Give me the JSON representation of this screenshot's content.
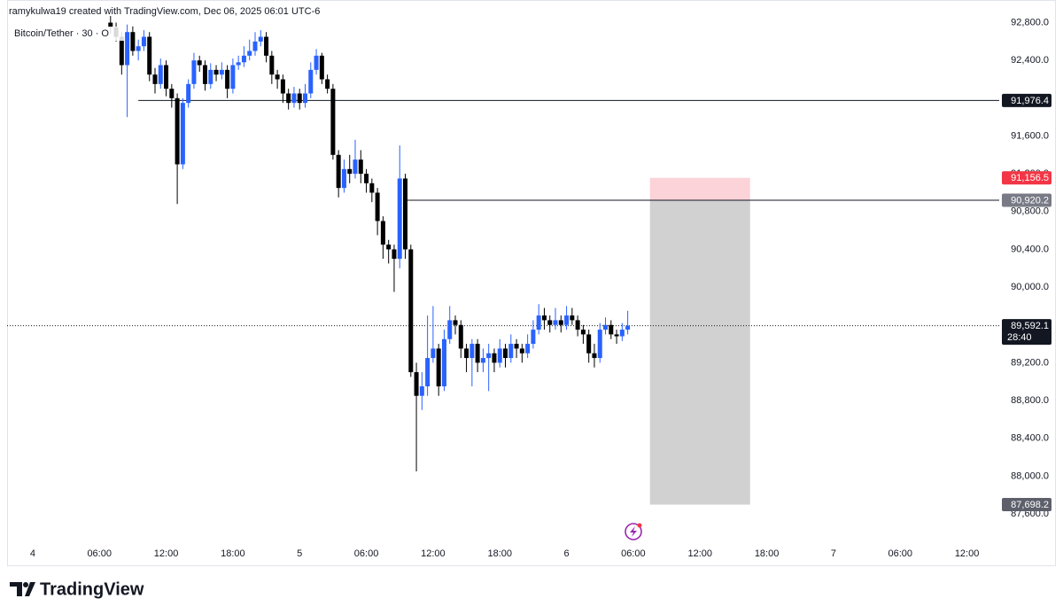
{
  "chart_data": {
    "type": "candlestick",
    "subtitle": "ramykulwa19 created with TradingView.com, Dec 06, 2025 06:01 UTC-6",
    "title": "Bitcoin/Tether · 30 · O",
    "up_color": "#2962ff",
    "down_color": "#000000",
    "grid": false,
    "x": [
      7,
      7.5,
      8,
      8.5,
      9,
      9.5,
      10,
      10.5,
      11,
      11.5,
      12,
      12.5,
      13,
      13.5,
      14,
      14.5,
      15,
      15.5,
      16,
      16.5,
      17,
      17.5,
      18,
      18.5,
      19,
      19.5,
      20,
      20.5,
      21,
      21.5,
      22,
      22.5,
      23,
      23.5,
      24,
      24.5,
      25,
      25.5,
      26,
      26.5,
      27,
      27.5,
      28,
      28.5,
      29,
      29.5,
      30,
      30.5,
      31,
      31.5,
      32,
      32.5,
      33,
      33.5,
      34,
      34.5,
      35,
      35.5,
      36,
      36.5,
      37,
      37.5,
      38,
      38.5,
      39,
      39.5,
      40,
      40.5,
      41,
      41.5,
      42,
      42.5,
      43,
      43.5,
      44,
      44.5,
      45,
      45.5,
      46,
      46.5,
      47,
      47.5,
      48,
      48.5,
      49,
      49.5,
      50,
      50.5,
      51,
      51.5,
      52,
      52.5,
      53,
      53.5
    ],
    "open": [
      92800,
      92750,
      92650,
      92350,
      92700,
      92500,
      92550,
      92650,
      92250,
      92150,
      92350,
      92100,
      92000,
      91300,
      91950,
      92150,
      92400,
      92350,
      92150,
      92300,
      92250,
      92300,
      92100,
      92350,
      92380,
      92450,
      92500,
      92600,
      92650,
      92450,
      92250,
      92200,
      92050,
      91950,
      92050,
      91950,
      92050,
      92300,
      92450,
      92200,
      92100,
      91400,
      91050,
      91250,
      91200,
      91350,
      91200,
      91100,
      91000,
      90700,
      90450,
      90400,
      90300,
      91150,
      90400,
      89100,
      88850,
      88950,
      89250,
      89350,
      88950,
      89450,
      89650,
      89600,
      89350,
      89250,
      89400,
      89200,
      89250,
      89300,
      89200,
      89350,
      89250,
      89400,
      89350,
      89300,
      89400,
      89550,
      89700,
      89650,
      89600,
      89650,
      89600,
      89700,
      89650,
      89550,
      89500,
      89300,
      89250,
      89550,
      89600,
      89500,
      89480,
      89550
    ],
    "high": [
      92870,
      92800,
      92700,
      92780,
      92760,
      92620,
      92720,
      92700,
      92320,
      92420,
      92400,
      92150,
      92050,
      92000,
      92200,
      92480,
      92450,
      92400,
      92370,
      92350,
      92380,
      92350,
      92420,
      92450,
      92550,
      92620,
      92700,
      92720,
      92700,
      92500,
      92300,
      92250,
      92100,
      92120,
      92100,
      92150,
      92380,
      92520,
      92480,
      92250,
      92150,
      91450,
      91350,
      91400,
      91560,
      91450,
      91250,
      91150,
      91050,
      90750,
      90500,
      90450,
      91500,
      91200,
      90450,
      89200,
      89100,
      89700,
      89800,
      89400,
      89550,
      89800,
      89700,
      89650,
      89400,
      89450,
      89450,
      89350,
      89400,
      89350,
      89450,
      89400,
      89500,
      89450,
      89400,
      89500,
      89650,
      89820,
      89780,
      89700,
      89780,
      89700,
      89800,
      89780,
      89700,
      89600,
      89550,
      89400,
      89620,
      89680,
      89650,
      89550,
      89620,
      89750
    ],
    "low": [
      92680,
      92600,
      92250,
      91800,
      92450,
      92400,
      92500,
      92180,
      92050,
      92100,
      92020,
      91900,
      90880,
      91250,
      91900,
      92100,
      92280,
      92080,
      92100,
      92180,
      92200,
      92000,
      92050,
      92300,
      92330,
      92400,
      92450,
      92550,
      92380,
      92150,
      92100,
      91950,
      91880,
      91900,
      91880,
      91900,
      92000,
      92250,
      92150,
      92050,
      91350,
      90950,
      91000,
      91100,
      91150,
      91100,
      91000,
      90900,
      90550,
      90300,
      90250,
      89950,
      90200,
      90300,
      89050,
      88050,
      88700,
      88850,
      89200,
      88850,
      88900,
      89400,
      89500,
      89250,
      89100,
      88950,
      89100,
      89100,
      88900,
      89100,
      89150,
      89150,
      89200,
      89250,
      89200,
      89250,
      89350,
      89500,
      89550,
      89520,
      89550,
      89520,
      89550,
      89600,
      89480,
      89400,
      89200,
      89150,
      89200,
      89500,
      89450,
      89400,
      89430,
      89500
    ],
    "close": [
      92750,
      92650,
      92350,
      92700,
      92500,
      92550,
      92650,
      92250,
      92150,
      92350,
      92100,
      92000,
      91300,
      91950,
      92150,
      92400,
      92350,
      92150,
      92300,
      92250,
      92300,
      92100,
      92350,
      92380,
      92450,
      92500,
      92600,
      92650,
      92450,
      92250,
      92200,
      92050,
      91950,
      92050,
      91950,
      92050,
      92300,
      92450,
      92200,
      92100,
      91400,
      91050,
      91250,
      91200,
      91350,
      91200,
      91100,
      91000,
      90700,
      90450,
      90400,
      90300,
      91150,
      90400,
      89100,
      88850,
      88950,
      89250,
      89350,
      88950,
      89450,
      89650,
      89600,
      89350,
      89250,
      89400,
      89200,
      89250,
      89300,
      89200,
      89350,
      89250,
      89400,
      89350,
      89300,
      89400,
      89550,
      89700,
      89650,
      89600,
      89650,
      89600,
      89700,
      89650,
      89550,
      89500,
      89300,
      89250,
      89550,
      89600,
      89500,
      89480,
      89550,
      89592.1
    ],
    "xlim": [
      -2.3,
      86.9
    ],
    "ylim": [
      87300,
      92880
    ],
    "xticks": [
      {
        "value": 0,
        "label": "4"
      },
      {
        "value": 6,
        "label": "06:00"
      },
      {
        "value": 12,
        "label": "12:00"
      },
      {
        "value": 18,
        "label": "18:00"
      },
      {
        "value": 24,
        "label": "5"
      },
      {
        "value": 30,
        "label": "06:00"
      },
      {
        "value": 36,
        "label": "12:00"
      },
      {
        "value": 42,
        "label": "18:00"
      },
      {
        "value": 48,
        "label": "6"
      },
      {
        "value": 54,
        "label": "06:00"
      },
      {
        "value": 60,
        "label": "12:00"
      },
      {
        "value": 66,
        "label": "18:00"
      },
      {
        "value": 72,
        "label": "7"
      },
      {
        "value": 78,
        "label": "06:00"
      },
      {
        "value": 84,
        "label": "12:00"
      }
    ],
    "yticks": [
      {
        "value": 87600,
        "label": "87,600.0"
      },
      {
        "value": 88000,
        "label": "88,000.0"
      },
      {
        "value": 88400,
        "label": "88,400.0"
      },
      {
        "value": 88800,
        "label": "88,800.0"
      },
      {
        "value": 89200,
        "label": "89,200.0"
      },
      {
        "value": 89600,
        "label": "89,600.0"
      },
      {
        "value": 90000,
        "label": "90,000.0"
      },
      {
        "value": 90400,
        "label": "90,400.0"
      },
      {
        "value": 90800,
        "label": "90,800.0"
      },
      {
        "value": 91200,
        "label": "91,200.0"
      },
      {
        "value": 91600,
        "label": "91,600.0"
      },
      {
        "value": 92000,
        "label": "92,000.0"
      },
      {
        "value": 92400,
        "label": "92,400.0"
      },
      {
        "value": 92800,
        "label": "92,800.0"
      }
    ],
    "levels": [
      {
        "value": 91976.4,
        "label": "91,976.4",
        "from_x": 9.5
      },
      {
        "value": 90920.2,
        "label": "90,920.2",
        "from_x": 33.5
      }
    ],
    "last_price": {
      "value": 89592.1,
      "label": "89,592.1",
      "countdown": "28:40"
    },
    "position": {
      "x": [
        55.5,
        64.5
      ],
      "stop": {
        "value": 91156.5,
        "label": "91,156.5"
      },
      "entry": {
        "value": 90920.2,
        "label": "90,920.2"
      },
      "target": {
        "value": 87698.2,
        "label": "87,698.2"
      }
    }
  },
  "brand": "TradingView"
}
